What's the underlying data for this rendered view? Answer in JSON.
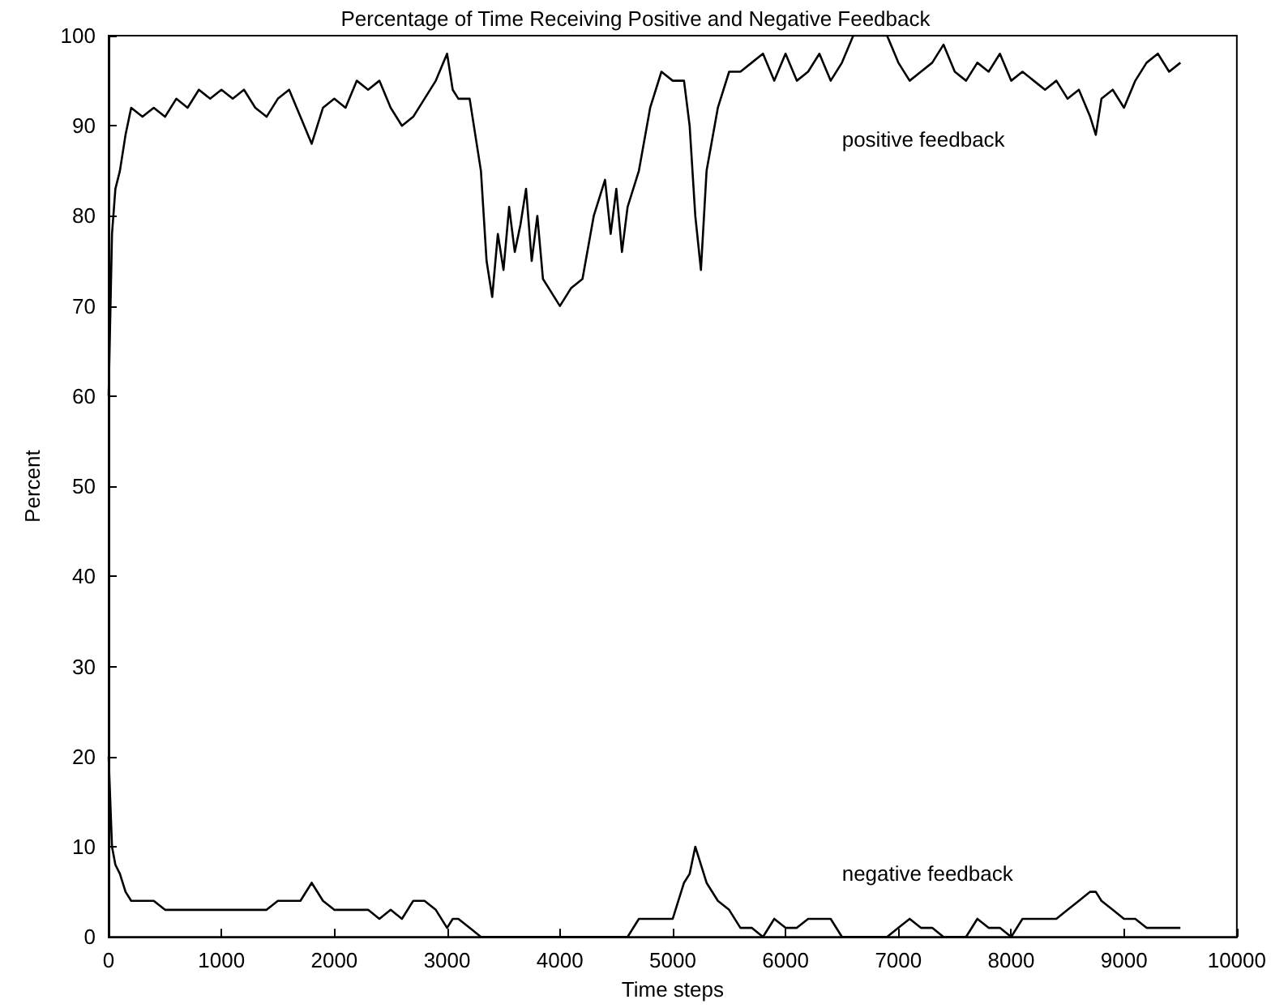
{
  "chart_data": {
    "type": "line",
    "title": "Percentage of Time Receiving Positive and Negative Feedback",
    "xlabel": "Time steps",
    "ylabel": "Percent",
    "x": [
      0,
      30,
      60,
      100,
      150,
      200,
      300,
      400,
      500,
      600,
      700,
      800,
      900,
      1000,
      1100,
      1200,
      1300,
      1400,
      1500,
      1600,
      1700,
      1800,
      1900,
      2000,
      2100,
      2200,
      2300,
      2400,
      2500,
      2600,
      2700,
      2800,
      2900,
      3000,
      3050,
      3100,
      3200,
      3300,
      3350,
      3400,
      3450,
      3500,
      3550,
      3600,
      3650,
      3700,
      3750,
      3800,
      3850,
      3900,
      4000,
      4100,
      4200,
      4300,
      4400,
      4450,
      4500,
      4550,
      4600,
      4700,
      4800,
      4900,
      5000,
      5100,
      5150,
      5200,
      5250,
      5300,
      5400,
      5500,
      5600,
      5700,
      5800,
      5900,
      6000,
      6100,
      6200,
      6300,
      6400,
      6500,
      6600,
      6900,
      7000,
      7100,
      7200,
      7300,
      7400,
      7500,
      7600,
      7700,
      7800,
      7900,
      8000,
      8100,
      8200,
      8300,
      8400,
      8500,
      8600,
      8700,
      8750,
      8800,
      8900,
      9000,
      9100,
      9200,
      9300,
      9400,
      9500
    ],
    "series": [
      {
        "name": "positive feedback",
        "color": "#000000",
        "values": [
          60,
          78,
          83,
          85,
          89,
          92,
          91,
          92,
          91,
          93,
          92,
          94,
          93,
          94,
          93,
          94,
          92,
          91,
          93,
          94,
          91,
          88,
          92,
          93,
          92,
          95,
          94,
          95,
          92,
          90,
          91,
          93,
          95,
          98,
          94,
          93,
          93,
          85,
          75,
          71,
          78,
          74,
          81,
          76,
          79,
          83,
          75,
          80,
          73,
          72,
          70,
          72,
          73,
          80,
          84,
          78,
          83,
          76,
          81,
          85,
          92,
          96,
          95,
          95,
          90,
          80,
          74,
          85,
          92,
          96,
          96,
          97,
          98,
          95,
          98,
          95,
          96,
          98,
          95,
          97,
          100,
          100,
          97,
          95,
          96,
          97,
          99,
          96,
          95,
          97,
          96,
          98,
          95,
          96,
          95,
          94,
          95,
          93,
          94,
          91,
          89,
          93,
          94,
          92,
          95,
          97,
          98,
          96,
          97
        ]
      },
      {
        "name": "negative feedback",
        "color": "#000000",
        "values": [
          20,
          10,
          8,
          7,
          5,
          4,
          4,
          4,
          3,
          3,
          3,
          3,
          3,
          3,
          3,
          3,
          3,
          3,
          4,
          4,
          4,
          6,
          4,
          3,
          3,
          3,
          3,
          2,
          3,
          2,
          4,
          4,
          3,
          1,
          2,
          2,
          1,
          0,
          0,
          0,
          0,
          0,
          0,
          0,
          0,
          0,
          0,
          0,
          0,
          0,
          0,
          0,
          0,
          0,
          0,
          0,
          0,
          0,
          0,
          2,
          2,
          2,
          2,
          6,
          7,
          10,
          8,
          6,
          4,
          3,
          1,
          1,
          0,
          2,
          1,
          1,
          2,
          2,
          2,
          0,
          0,
          0,
          1,
          2,
          1,
          1,
          0,
          0,
          0,
          2,
          1,
          1,
          0,
          2,
          2,
          2,
          2,
          3,
          4,
          5,
          5,
          4,
          3,
          2,
          2,
          1,
          1,
          1,
          1
        ]
      }
    ],
    "xlim": [
      0,
      10000
    ],
    "xticks": [
      0,
      1000,
      2000,
      3000,
      4000,
      5000,
      6000,
      7000,
      8000,
      9000,
      10000
    ],
    "ylim": [
      0,
      100
    ],
    "yticks": [
      0,
      10,
      20,
      30,
      40,
      50,
      60,
      70,
      80,
      90,
      100
    ],
    "grid": false,
    "legend": false,
    "marker": "none",
    "line_style": "solid"
  }
}
